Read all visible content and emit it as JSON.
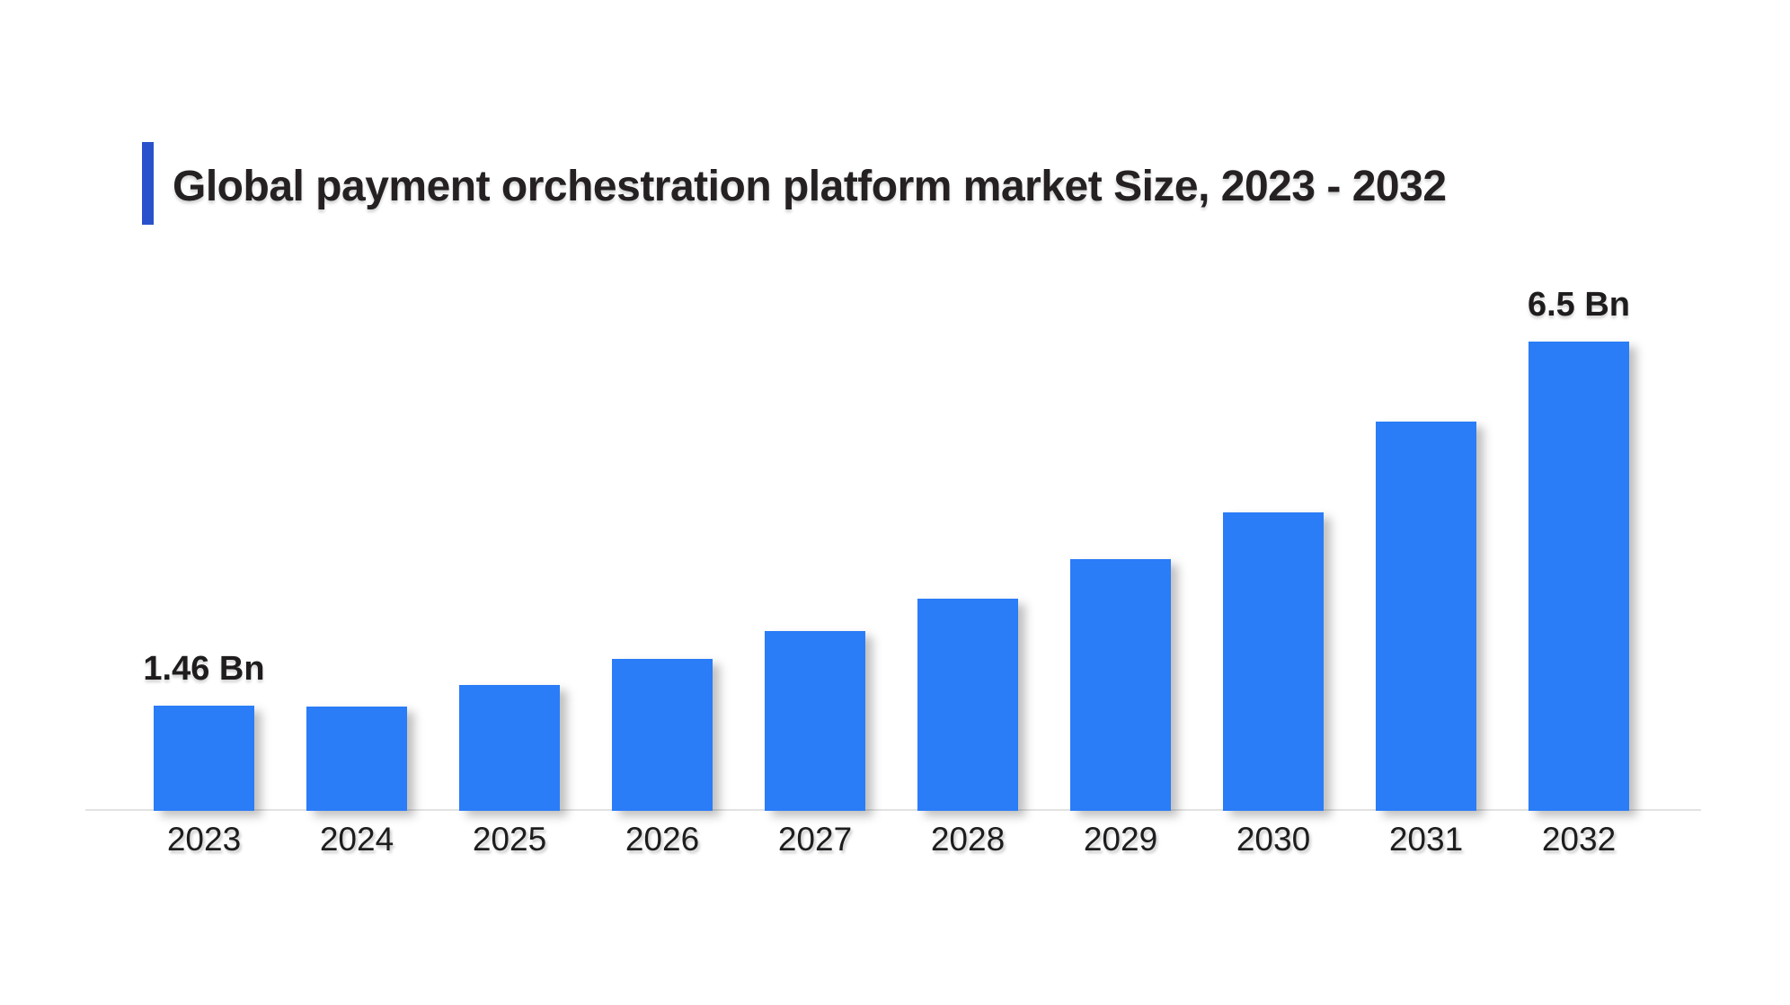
{
  "title": "Global payment orchestration platform market Size, 2023 - 2032",
  "colors": {
    "bar": "#2A7CF7",
    "title_accent": "#2951CB",
    "title_text": "#252122",
    "axis_label_text": "#1d1d1f",
    "value_label_text": "#1f1c1d",
    "axis_line": "#e2e2e2",
    "background": "#ffffff"
  },
  "chart_data": {
    "type": "bar",
    "title": "Global payment orchestration platform market Size, 2023 - 2032",
    "categories": [
      "2023",
      "2024",
      "2025",
      "2026",
      "2027",
      "2028",
      "2029",
      "2030",
      "2031",
      "2032"
    ],
    "values": [
      1.46,
      1.45,
      1.74,
      2.1,
      2.49,
      2.94,
      3.49,
      4.13,
      5.39,
      6.5
    ],
    "unit": "Bn",
    "data_labels": [
      {
        "category": "2023",
        "text": "1.46 Bn"
      },
      {
        "category": "2032",
        "text": "6.5 Bn"
      }
    ],
    "xlabel": "",
    "ylabel": "",
    "ylim": [
      0,
      6.5
    ],
    "grid": false,
    "legend": false
  }
}
